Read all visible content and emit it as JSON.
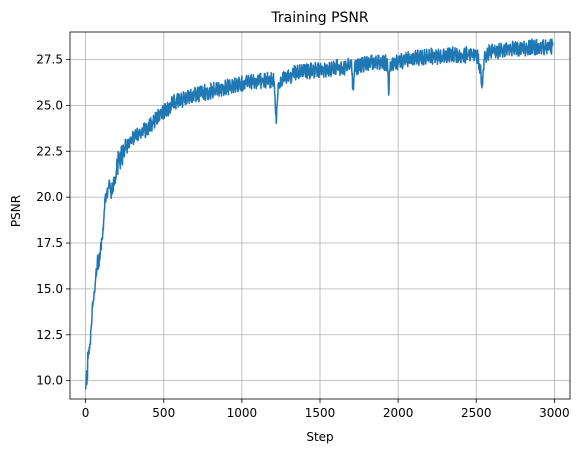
{
  "chart_data": {
    "type": "line",
    "title": "Training PSNR",
    "xlabel": "Step",
    "ylabel": "PSNR",
    "xlim": [
      -100,
      3100
    ],
    "ylim": [
      9.0,
      29.0
    ],
    "xticks": [
      0,
      500,
      1000,
      1500,
      2000,
      2500,
      3000
    ],
    "xtick_labels": [
      "0",
      "500",
      "1000",
      "1500",
      "2000",
      "2500",
      "3000"
    ],
    "yticks": [
      10.0,
      12.5,
      15.0,
      17.5,
      20.0,
      22.5,
      25.0,
      27.5
    ],
    "ytick_labels": [
      "10.0",
      "12.5",
      "15.0",
      "17.5",
      "20.0",
      "22.5",
      "25.0",
      "27.5"
    ],
    "grid": true,
    "series": [
      {
        "color": "#1f77b4",
        "x": [
          0,
          10,
          25,
          50,
          75,
          100,
          125,
          150,
          175,
          200,
          250,
          300,
          350,
          400,
          450,
          500,
          550,
          600,
          650,
          700,
          750,
          800,
          850,
          900,
          950,
          1000,
          1050,
          1100,
          1150,
          1200,
          1210,
          1220,
          1230,
          1240,
          1260,
          1300,
          1350,
          1400,
          1450,
          1500,
          1550,
          1600,
          1650,
          1700,
          1705,
          1710,
          1720,
          1750,
          1800,
          1850,
          1900,
          1930,
          1940,
          1950,
          2000,
          2050,
          2100,
          2150,
          2200,
          2250,
          2300,
          2350,
          2400,
          2450,
          2500,
          2520,
          2540,
          2550,
          2560,
          2580,
          2600,
          2650,
          2700,
          2750,
          2800,
          2850,
          2900,
          2950,
          2990
        ],
        "y": [
          9.9,
          10.8,
          12.5,
          14.5,
          16.5,
          18.0,
          19.8,
          20.6,
          21.3,
          22.0,
          22.9,
          23.4,
          23.7,
          24.0,
          24.5,
          24.8,
          25.3,
          25.5,
          25.6,
          25.8,
          25.9,
          26.0,
          26.1,
          26.2,
          26.3,
          26.4,
          26.5,
          26.5,
          26.6,
          26.6,
          26.2,
          24.2,
          26.1,
          26.5,
          26.7,
          26.8,
          27.0,
          27.1,
          27.1,
          27.2,
          27.2,
          27.3,
          27.3,
          27.4,
          26.9,
          25.9,
          27.2,
          27.4,
          27.5,
          27.6,
          27.6,
          27.5,
          26.0,
          27.4,
          27.6,
          27.7,
          27.8,
          27.8,
          27.9,
          27.9,
          27.9,
          28.0,
          27.9,
          28.0,
          28.0,
          27.5,
          26.2,
          27.8,
          28.0,
          28.1,
          28.2,
          28.2,
          28.3,
          28.3,
          28.3,
          28.4,
          28.4,
          28.4,
          28.4
        ]
      }
    ]
  }
}
